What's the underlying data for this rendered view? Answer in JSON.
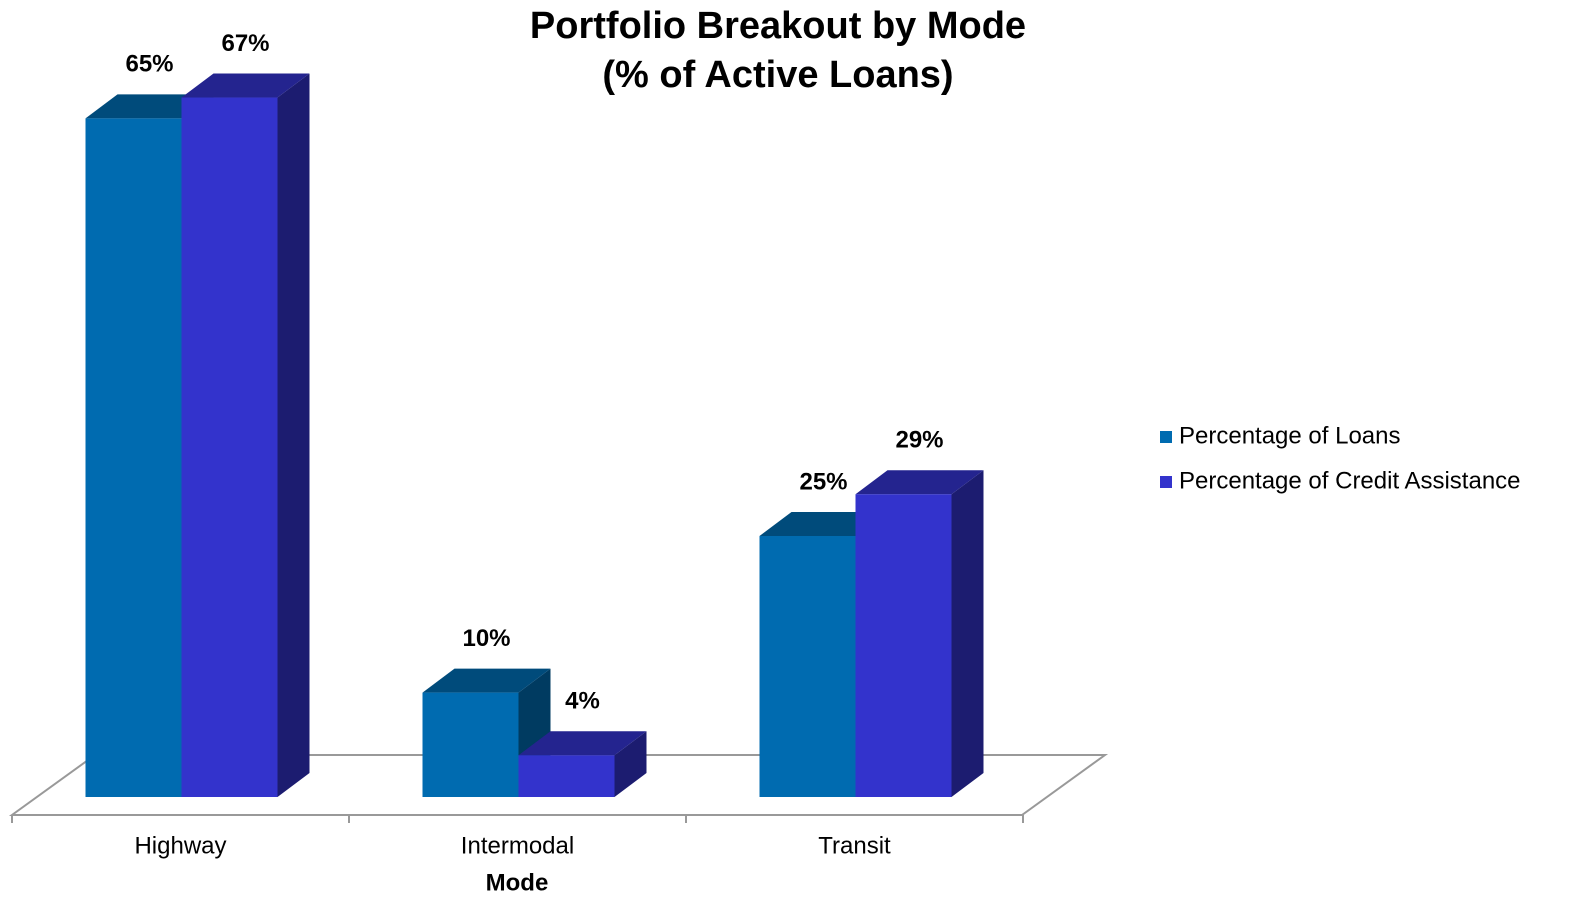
{
  "chart_data": {
    "type": "bar3d",
    "title": "Portfolio Breakout by Mode",
    "subtitle": "(% of Active Loans)",
    "x_label": "Mode",
    "categories": [
      "Highway",
      "Intermodal",
      "Transit"
    ],
    "series": [
      {
        "name": "Percentage of Loans",
        "color": "#006bb0",
        "values": [
          65,
          10,
          25
        ],
        "value_labels": [
          "65%",
          "10%",
          "25%"
        ]
      },
      {
        "name": "Percentage of Credit Assistance",
        "color": "#3333cc",
        "values": [
          67,
          4,
          29
        ],
        "value_labels": [
          "67%",
          "4%",
          "29%"
        ]
      }
    ],
    "legend": "right"
  }
}
